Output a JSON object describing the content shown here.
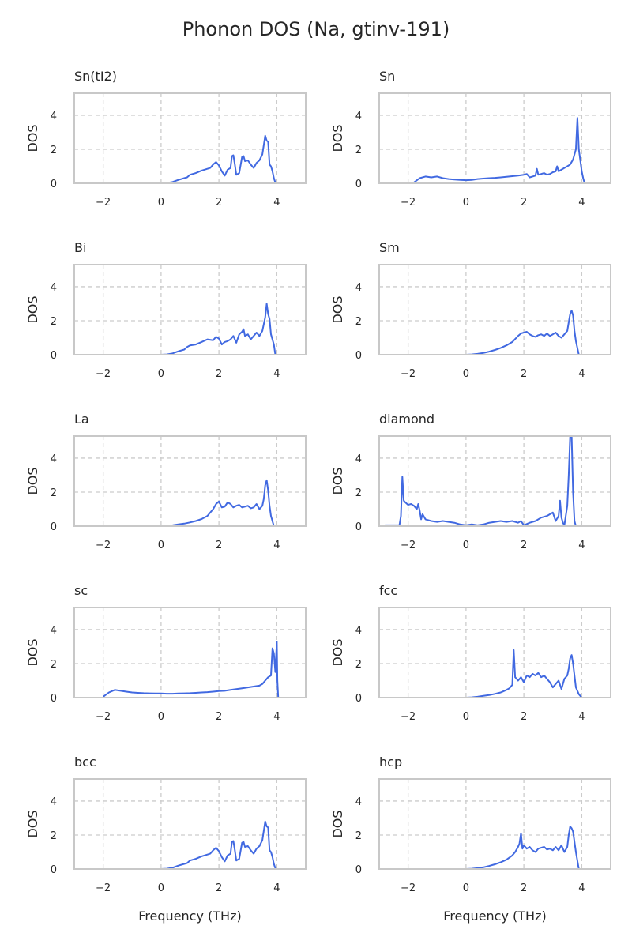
{
  "title": "Phonon DOS (Na, gtinv-191)",
  "colors": {
    "line": "#4169E1",
    "grid": "#cccccc",
    "frame": "#c8c8c8",
    "text": "#262626"
  },
  "chart_data": [
    {
      "type": "line",
      "title": "Sn(tI2)",
      "xlabel": "",
      "ylabel": "DOS",
      "xlim": [
        -3,
        5
      ],
      "ylim": [
        0,
        5.3
      ],
      "xticks": [
        -2,
        0,
        2,
        4
      ],
      "yticks": [
        0,
        2,
        4
      ],
      "grid": true,
      "x": [
        0.0,
        0.2,
        0.4,
        0.6,
        0.8,
        0.9,
        1.0,
        1.2,
        1.4,
        1.6,
        1.7,
        1.8,
        1.9,
        2.0,
        2.1,
        2.2,
        2.3,
        2.4,
        2.45,
        2.5,
        2.55,
        2.6,
        2.7,
        2.8,
        2.85,
        2.9,
        3.0,
        3.1,
        3.2,
        3.3,
        3.4,
        3.5,
        3.6,
        3.65,
        3.7,
        3.75,
        3.8,
        3.85,
        3.9,
        3.95,
        4.0
      ],
      "y": [
        0.0,
        0.02,
        0.08,
        0.2,
        0.3,
        0.35,
        0.5,
        0.6,
        0.75,
        0.85,
        0.9,
        1.1,
        1.25,
        1.05,
        0.7,
        0.45,
        0.8,
        0.9,
        1.6,
        1.65,
        1.1,
        0.5,
        0.6,
        1.55,
        1.6,
        1.3,
        1.35,
        1.1,
        0.9,
        1.2,
        1.35,
        1.7,
        2.8,
        2.5,
        2.45,
        1.1,
        1.0,
        0.7,
        0.3,
        0.05,
        0.0
      ]
    },
    {
      "type": "line",
      "title": "Sn",
      "xlabel": "",
      "ylabel": "DOS",
      "xlim": [
        -3,
        5
      ],
      "ylim": [
        0,
        5.3
      ],
      "xticks": [
        -2,
        0,
        2,
        4
      ],
      "yticks": [
        0,
        2,
        4
      ],
      "grid": true,
      "x": [
        -1.8,
        -1.6,
        -1.4,
        -1.2,
        -1.0,
        -0.8,
        -0.6,
        -0.4,
        -0.2,
        0.0,
        0.2,
        0.4,
        0.6,
        0.8,
        1.0,
        1.2,
        1.4,
        1.6,
        1.8,
        2.0,
        2.1,
        2.2,
        2.3,
        2.4,
        2.45,
        2.5,
        2.6,
        2.7,
        2.8,
        2.9,
        3.0,
        3.1,
        3.15,
        3.2,
        3.3,
        3.4,
        3.5,
        3.6,
        3.7,
        3.8,
        3.85,
        3.9,
        4.0,
        4.05,
        4.1
      ],
      "y": [
        0.05,
        0.3,
        0.4,
        0.35,
        0.4,
        0.3,
        0.25,
        0.22,
        0.2,
        0.18,
        0.2,
        0.25,
        0.28,
        0.3,
        0.32,
        0.35,
        0.38,
        0.42,
        0.45,
        0.5,
        0.55,
        0.35,
        0.4,
        0.45,
        0.85,
        0.5,
        0.55,
        0.6,
        0.5,
        0.55,
        0.65,
        0.7,
        1.0,
        0.7,
        0.8,
        0.9,
        1.0,
        1.1,
        1.4,
        2.0,
        3.85,
        2.0,
        0.7,
        0.3,
        0.0
      ]
    },
    {
      "type": "line",
      "title": "Bi",
      "xlabel": "",
      "ylabel": "DOS",
      "xlim": [
        -3,
        5
      ],
      "ylim": [
        0,
        5.3
      ],
      "xticks": [
        -2,
        0,
        2,
        4
      ],
      "yticks": [
        0,
        2,
        4
      ],
      "grid": true,
      "x": [
        0.0,
        0.2,
        0.4,
        0.6,
        0.8,
        0.9,
        1.0,
        1.2,
        1.4,
        1.6,
        1.8,
        1.9,
        2.0,
        2.1,
        2.2,
        2.3,
        2.4,
        2.5,
        2.6,
        2.7,
        2.8,
        2.85,
        2.9,
        3.0,
        3.1,
        3.2,
        3.3,
        3.4,
        3.5,
        3.6,
        3.65,
        3.7,
        3.75,
        3.8,
        3.9,
        3.95
      ],
      "y": [
        0.0,
        0.02,
        0.08,
        0.2,
        0.3,
        0.45,
        0.55,
        0.6,
        0.75,
        0.9,
        0.85,
        1.05,
        0.95,
        0.6,
        0.75,
        0.8,
        0.9,
        1.1,
        0.7,
        1.2,
        1.35,
        1.5,
        1.1,
        1.2,
        0.9,
        1.1,
        1.3,
        1.1,
        1.4,
        2.2,
        3.0,
        2.4,
        2.1,
        1.2,
        0.6,
        0.0
      ]
    },
    {
      "type": "line",
      "title": "Sm",
      "xlabel": "",
      "ylabel": "DOS",
      "xlim": [
        -3,
        5
      ],
      "ylim": [
        0,
        5.3
      ],
      "xticks": [
        -2,
        0,
        2,
        4
      ],
      "yticks": [
        0,
        2,
        4
      ],
      "grid": true,
      "x": [
        0.0,
        0.2,
        0.4,
        0.6,
        0.8,
        1.0,
        1.2,
        1.4,
        1.6,
        1.8,
        1.9,
        2.0,
        2.1,
        2.2,
        2.3,
        2.4,
        2.5,
        2.6,
        2.7,
        2.8,
        2.9,
        3.0,
        3.1,
        3.2,
        3.3,
        3.4,
        3.5,
        3.55,
        3.6,
        3.65,
        3.7,
        3.75,
        3.8,
        3.9
      ],
      "y": [
        0.0,
        0.02,
        0.05,
        0.1,
        0.18,
        0.28,
        0.4,
        0.55,
        0.75,
        1.1,
        1.25,
        1.3,
        1.35,
        1.2,
        1.1,
        1.05,
        1.15,
        1.2,
        1.1,
        1.25,
        1.1,
        1.2,
        1.3,
        1.1,
        1.0,
        1.2,
        1.4,
        1.9,
        2.4,
        2.6,
        2.3,
        1.4,
        0.8,
        0.0
      ]
    },
    {
      "type": "line",
      "title": "La",
      "xlabel": "",
      "ylabel": "DOS",
      "xlim": [
        -3,
        5
      ],
      "ylim": [
        0,
        5.3
      ],
      "xticks": [
        -2,
        0,
        2,
        4
      ],
      "yticks": [
        0,
        2,
        4
      ],
      "grid": true,
      "x": [
        -0.1,
        0.0,
        0.2,
        0.4,
        0.6,
        0.8,
        1.0,
        1.2,
        1.4,
        1.6,
        1.8,
        1.9,
        2.0,
        2.1,
        2.2,
        2.3,
        2.4,
        2.5,
        2.6,
        2.7,
        2.8,
        2.9,
        3.0,
        3.1,
        3.2,
        3.3,
        3.4,
        3.5,
        3.55,
        3.6,
        3.65,
        3.7,
        3.75,
        3.8,
        3.9
      ],
      "y": [
        0.0,
        0.0,
        0.02,
        0.05,
        0.1,
        0.15,
        0.22,
        0.3,
        0.42,
        0.6,
        1.0,
        1.3,
        1.45,
        1.1,
        1.15,
        1.4,
        1.3,
        1.1,
        1.2,
        1.25,
        1.1,
        1.15,
        1.2,
        1.05,
        1.1,
        1.3,
        1.0,
        1.2,
        1.6,
        2.4,
        2.7,
        2.1,
        1.2,
        0.6,
        0.0
      ]
    },
    {
      "type": "line",
      "title": "diamond",
      "xlabel": "",
      "ylabel": "DOS",
      "xlim": [
        -3,
        5
      ],
      "ylim": [
        0,
        5.3
      ],
      "xticks": [
        -2,
        0,
        2,
        4
      ],
      "yticks": [
        0,
        2,
        4
      ],
      "grid": true,
      "x": [
        -2.8,
        -2.3,
        -2.25,
        -2.2,
        -2.15,
        -2.1,
        -2.0,
        -1.9,
        -1.8,
        -1.7,
        -1.65,
        -1.6,
        -1.55,
        -1.5,
        -1.4,
        -1.2,
        -1.0,
        -0.8,
        -0.6,
        -0.4,
        -0.2,
        0.0,
        0.2,
        0.4,
        0.6,
        0.8,
        1.0,
        1.2,
        1.4,
        1.6,
        1.8,
        1.9,
        2.0,
        2.2,
        2.4,
        2.6,
        2.8,
        3.0,
        3.1,
        3.2,
        3.25,
        3.3,
        3.35,
        3.4,
        3.5,
        3.55,
        3.6,
        3.62,
        3.65,
        3.7,
        3.75,
        3.8,
        4.3
      ],
      "y": [
        0.05,
        0.05,
        0.6,
        2.9,
        1.5,
        1.4,
        1.25,
        1.3,
        1.2,
        1.0,
        1.3,
        0.9,
        0.4,
        0.7,
        0.4,
        0.3,
        0.25,
        0.3,
        0.25,
        0.2,
        0.1,
        0.05,
        0.1,
        0.05,
        0.1,
        0.2,
        0.25,
        0.3,
        0.25,
        0.3,
        0.2,
        0.3,
        0.05,
        0.2,
        0.3,
        0.5,
        0.6,
        0.8,
        0.3,
        0.6,
        1.5,
        0.5,
        0.2,
        0.05,
        1.2,
        3.0,
        5.3,
        5.3,
        5.3,
        2.0,
        0.3,
        0.0,
        0.0
      ]
    },
    {
      "type": "line",
      "title": "sc",
      "xlabel": "",
      "ylabel": "DOS",
      "xlim": [
        -3,
        5
      ],
      "ylim": [
        0,
        5.3
      ],
      "xticks": [
        -2,
        0,
        2,
        4
      ],
      "yticks": [
        0,
        2,
        4
      ],
      "grid": true,
      "x": [
        -2.0,
        -1.8,
        -1.6,
        -1.4,
        -1.2,
        -1.0,
        -0.8,
        -0.6,
        -0.4,
        -0.2,
        0.0,
        0.2,
        0.4,
        0.6,
        0.8,
        1.0,
        1.2,
        1.4,
        1.6,
        1.8,
        2.0,
        2.2,
        2.4,
        2.6,
        2.8,
        3.0,
        3.2,
        3.4,
        3.5,
        3.6,
        3.7,
        3.8,
        3.85,
        3.9,
        3.95,
        4.0,
        4.02,
        4.05
      ],
      "y": [
        0.05,
        0.3,
        0.45,
        0.4,
        0.35,
        0.3,
        0.28,
        0.26,
        0.25,
        0.24,
        0.24,
        0.23,
        0.23,
        0.24,
        0.25,
        0.26,
        0.28,
        0.3,
        0.32,
        0.35,
        0.38,
        0.4,
        0.45,
        0.5,
        0.55,
        0.6,
        0.65,
        0.7,
        0.8,
        1.0,
        1.2,
        1.3,
        2.9,
        2.6,
        1.5,
        3.3,
        1.0,
        0.0
      ]
    },
    {
      "type": "line",
      "title": "fcc",
      "xlabel": "",
      "ylabel": "DOS",
      "xlim": [
        -3,
        5
      ],
      "ylim": [
        0,
        5.3
      ],
      "xticks": [
        -2,
        0,
        2,
        4
      ],
      "yticks": [
        0,
        2,
        4
      ],
      "grid": true,
      "x": [
        0.0,
        0.2,
        0.4,
        0.6,
        0.8,
        1.0,
        1.2,
        1.4,
        1.5,
        1.6,
        1.65,
        1.7,
        1.75,
        1.8,
        1.9,
        2.0,
        2.1,
        2.2,
        2.3,
        2.4,
        2.5,
        2.6,
        2.7,
        2.8,
        2.9,
        3.0,
        3.1,
        3.2,
        3.3,
        3.4,
        3.5,
        3.55,
        3.6,
        3.65,
        3.7,
        3.75,
        3.8,
        3.9,
        4.0
      ],
      "y": [
        0.0,
        0.02,
        0.05,
        0.1,
        0.15,
        0.22,
        0.3,
        0.45,
        0.55,
        0.75,
        2.8,
        1.2,
        1.1,
        1.0,
        1.2,
        0.9,
        1.3,
        1.2,
        1.4,
        1.3,
        1.45,
        1.2,
        1.3,
        1.1,
        0.9,
        0.6,
        0.8,
        1.0,
        0.5,
        1.1,
        1.3,
        1.7,
        2.3,
        2.5,
        2.0,
        1.3,
        0.6,
        0.2,
        0.0
      ]
    },
    {
      "type": "line",
      "title": "bcc",
      "xlabel": "Frequency (THz)",
      "ylabel": "DOS",
      "xlim": [
        -3,
        5
      ],
      "ylim": [
        0,
        5.3
      ],
      "xticks": [
        -2,
        0,
        2,
        4
      ],
      "yticks": [
        0,
        2,
        4
      ],
      "grid": true,
      "x": [
        0.0,
        0.2,
        0.4,
        0.6,
        0.8,
        0.9,
        1.0,
        1.2,
        1.4,
        1.6,
        1.7,
        1.8,
        1.9,
        2.0,
        2.1,
        2.2,
        2.3,
        2.4,
        2.45,
        2.5,
        2.55,
        2.6,
        2.7,
        2.8,
        2.85,
        2.9,
        3.0,
        3.1,
        3.2,
        3.3,
        3.4,
        3.5,
        3.6,
        3.65,
        3.7,
        3.75,
        3.8,
        3.85,
        3.9,
        3.95,
        4.0
      ],
      "y": [
        0.0,
        0.02,
        0.08,
        0.2,
        0.3,
        0.35,
        0.5,
        0.6,
        0.75,
        0.85,
        0.9,
        1.1,
        1.25,
        1.05,
        0.7,
        0.45,
        0.8,
        0.9,
        1.6,
        1.65,
        1.1,
        0.5,
        0.6,
        1.55,
        1.6,
        1.3,
        1.35,
        1.1,
        0.9,
        1.2,
        1.35,
        1.7,
        2.8,
        2.5,
        2.45,
        1.1,
        1.0,
        0.7,
        0.3,
        0.05,
        0.0
      ]
    },
    {
      "type": "line",
      "title": "hcp",
      "xlabel": "Frequency (THz)",
      "ylabel": "DOS",
      "xlim": [
        -3,
        5
      ],
      "ylim": [
        0,
        5.3
      ],
      "xticks": [
        -2,
        0,
        2,
        4
      ],
      "yticks": [
        0,
        2,
        4
      ],
      "grid": true,
      "x": [
        0.0,
        0.2,
        0.4,
        0.6,
        0.8,
        1.0,
        1.2,
        1.4,
        1.6,
        1.7,
        1.8,
        1.85,
        1.9,
        1.95,
        2.0,
        2.1,
        2.2,
        2.3,
        2.4,
        2.5,
        2.6,
        2.7,
        2.8,
        2.9,
        3.0,
        3.1,
        3.2,
        3.3,
        3.4,
        3.5,
        3.55,
        3.6,
        3.65,
        3.7,
        3.8,
        3.9
      ],
      "y": [
        0.0,
        0.02,
        0.05,
        0.1,
        0.18,
        0.28,
        0.4,
        0.55,
        0.8,
        1.0,
        1.3,
        1.5,
        2.1,
        1.2,
        1.4,
        1.2,
        1.3,
        1.1,
        1.0,
        1.2,
        1.25,
        1.3,
        1.15,
        1.2,
        1.1,
        1.3,
        1.1,
        1.4,
        1.0,
        1.3,
        2.0,
        2.5,
        2.4,
        2.2,
        1.0,
        0.0
      ]
    }
  ]
}
